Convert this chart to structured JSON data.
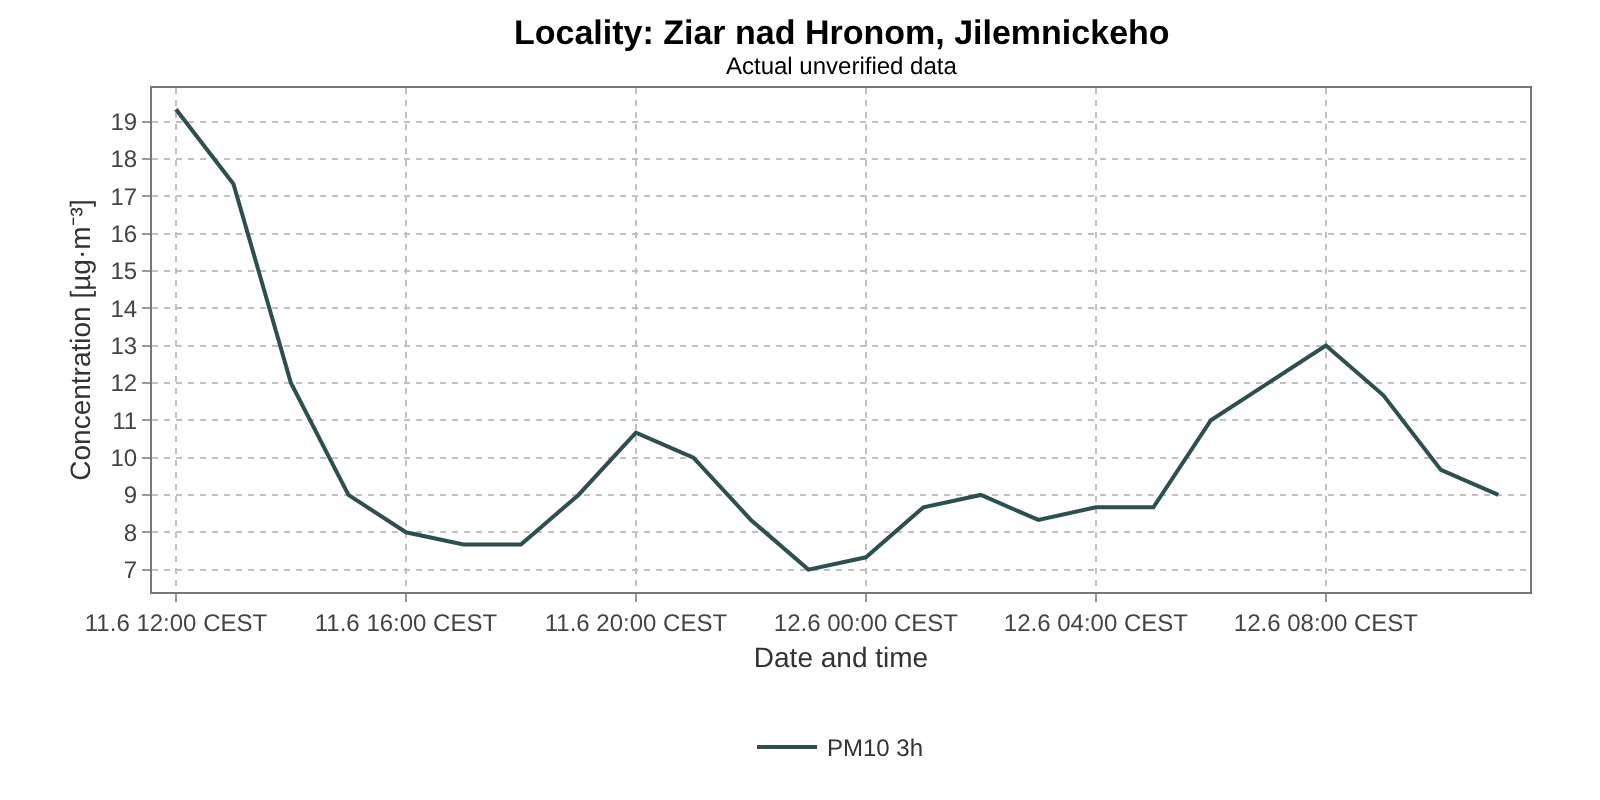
{
  "chart_data": {
    "type": "line",
    "title": "Locality: Ziar nad Hronom, Jilemnickeho",
    "subtitle": "Actual unverified data",
    "xlabel": "Date and time",
    "ylabel": "Concentration [µg·m⁻³]",
    "x": [
      "--06-11T12:00",
      "--06-11T13:00",
      "--06-11T14:00",
      "--06-11T15:00",
      "--06-11T16:00",
      "--06-11T17:00",
      "--06-11T18:00",
      "--06-11T19:00",
      "--06-11T20:00",
      "--06-11T21:00",
      "--06-11T22:00",
      "--06-11T23:00",
      "--06-12T00:00",
      "--06-12T01:00",
      "--06-12T02:00",
      "--06-12T03:00",
      "--06-12T04:00",
      "--06-12T05:00",
      "--06-12T06:00",
      "--06-12T07:00",
      "--06-12T08:00",
      "--06-12T09:00",
      "--06-12T10:00",
      "--06-12T11:00"
    ],
    "series": [
      {
        "name": "PM10 3h",
        "color": "#2f4f4f",
        "values": [
          19.33,
          17.33,
          12,
          9,
          8,
          7.67,
          7.67,
          9,
          10.67,
          10,
          8.33,
          7,
          7.33,
          8.67,
          9,
          8.33,
          8.67,
          8.67,
          11,
          12,
          13,
          11.67,
          9.67,
          9
        ]
      }
    ],
    "xlim": [
      "--06-11T11:35",
      "--06-12T11:33"
    ],
    "xticks": [
      {
        "value": "--06-11T12:00",
        "label": "11.6 12:00 CEST"
      },
      {
        "value": "--06-11T16:00",
        "label": "11.6 16:00 CEST"
      },
      {
        "value": "--06-11T20:00",
        "label": "11.6 20:00 CEST"
      },
      {
        "value": "--06-12T00:00",
        "label": "12.6 00:00 CEST"
      },
      {
        "value": "--06-12T04:00",
        "label": "12.6 04:00 CEST"
      },
      {
        "value": "--06-12T08:00",
        "label": "12.6 08:00 CEST"
      }
    ],
    "ylim": [
      6.4,
      19.9
    ],
    "yticks": [
      7,
      8,
      9,
      10,
      11,
      12,
      13,
      14,
      15,
      16,
      17,
      18,
      19
    ],
    "grid": true,
    "legend": "bottom",
    "marker": "none",
    "line_style": "solid"
  }
}
